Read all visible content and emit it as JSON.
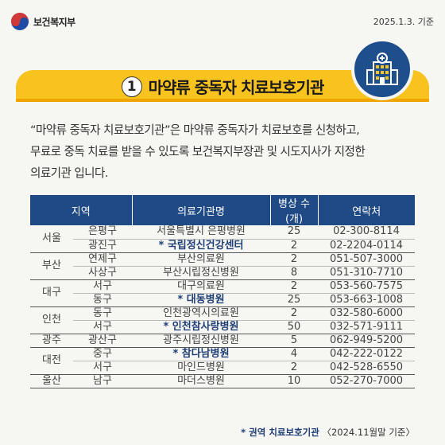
{
  "header": {
    "ministry": "보건복지부",
    "date": "2025.1.3. 기준"
  },
  "title": {
    "number": "1",
    "text": "마약류 중독자 치료보호기관"
  },
  "description": {
    "line1": "“마약류 중독자 치료보호기관”은 마약류 중독자가 치료보호를 신청하고,",
    "line2": "무료로 중독 치료를 받을 수 있도록 보건복지부장관 및 시도지사가 지정한",
    "line3": "의료기관 입니다."
  },
  "table": {
    "headers": [
      "지역",
      "의료기관명",
      "병상 수(개)",
      "연락처"
    ],
    "regions": [
      "서울",
      "부산",
      "대구",
      "인천",
      "광주",
      "대전",
      "울산"
    ],
    "rows": [
      {
        "district": "은평구",
        "name": "서울특별시 은평병원",
        "beds": "25",
        "phone": "02-300-8114"
      },
      {
        "district": "광진구",
        "name": "* 국립정신건강센터",
        "beds": "2",
        "phone": "02-2204-0114"
      },
      {
        "district": "연제구",
        "name": "부산의료원",
        "beds": "2",
        "phone": "051-507-3000"
      },
      {
        "district": "사상구",
        "name": "부산시립정신병원",
        "beds": "8",
        "phone": "051-310-7710"
      },
      {
        "district": "서구",
        "name": "대구의료원",
        "beds": "2",
        "phone": "053-560-7575"
      },
      {
        "district": "동구",
        "name": "* 대동병원",
        "beds": "25",
        "phone": "053-663-1008"
      },
      {
        "district": "동구",
        "name": "인천광역시의료원",
        "beds": "2",
        "phone": "032-580-6000"
      },
      {
        "district": "서구",
        "name": "* 인천참사랑병원",
        "beds": "50",
        "phone": "032-571-9111"
      },
      {
        "district": "광산구",
        "name": "광주시립정신병원",
        "beds": "5",
        "phone": "062-949-5200"
      },
      {
        "district": "중구",
        "name": "* 참다남병원",
        "beds": "4",
        "phone": "042-222-0122"
      },
      {
        "district": "서구",
        "name": "마인드병원",
        "beds": "2",
        "phone": "042-528-6550"
      },
      {
        "district": "남구",
        "name": "마더스병원",
        "beds": "10",
        "phone": "052-270-7000"
      }
    ]
  },
  "footnote": {
    "marker": "* 권역 치료보호기관",
    "note": "〈2024.11월말 기준〉"
  },
  "colors": {
    "accent_yellow": "#f8c21f",
    "header_navy": "#1f4a86",
    "highlight_text": "#1f3f75"
  },
  "icons": {
    "logo": "taegeuk-emblem-icon",
    "badge": "hospital-building-icon"
  }
}
